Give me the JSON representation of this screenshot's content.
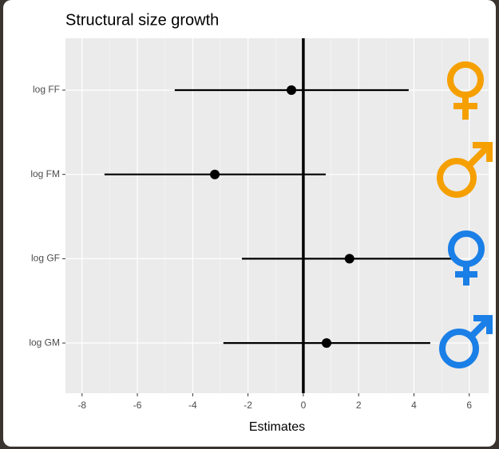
{
  "chart_data": {
    "type": "forest",
    "title": "Structural size growth",
    "x_label": "Estimates",
    "categories": [
      "log FF",
      "log FM",
      "log GF",
      "log GM"
    ],
    "values": [
      -0.43,
      -3.2,
      1.67,
      0.84
    ],
    "lower": [
      -4.65,
      -7.19,
      -2.22,
      -2.89
    ],
    "upper": [
      3.81,
      0.81,
      5.56,
      4.59
    ],
    "color": "#000000",
    "xlim": [
      -8.6,
      6.7
    ],
    "xticks": [
      -8,
      -6,
      -4,
      -2,
      0,
      2,
      4,
      6
    ],
    "reference_line": 0,
    "grid": true
  }
}
